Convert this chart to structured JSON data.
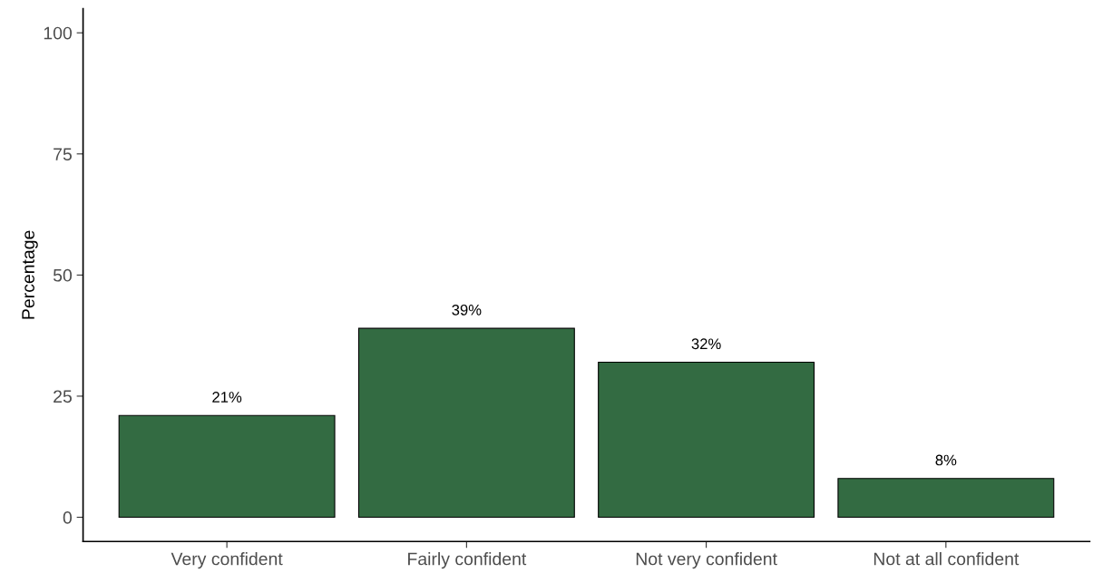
{
  "chart_data": {
    "type": "bar",
    "ylabel": "Percentage",
    "categories": [
      "Very confident",
      "Fairly confident",
      "Not very confident",
      "Not at all confident"
    ],
    "values": [
      21,
      39,
      32,
      8
    ],
    "value_labels": [
      "21%",
      "39%",
      "32%",
      "8%"
    ],
    "color": "#336b42",
    "ylim": [
      -5,
      105
    ],
    "yticks": [
      0,
      25,
      50,
      75,
      100
    ],
    "grid": false,
    "legend": false
  }
}
